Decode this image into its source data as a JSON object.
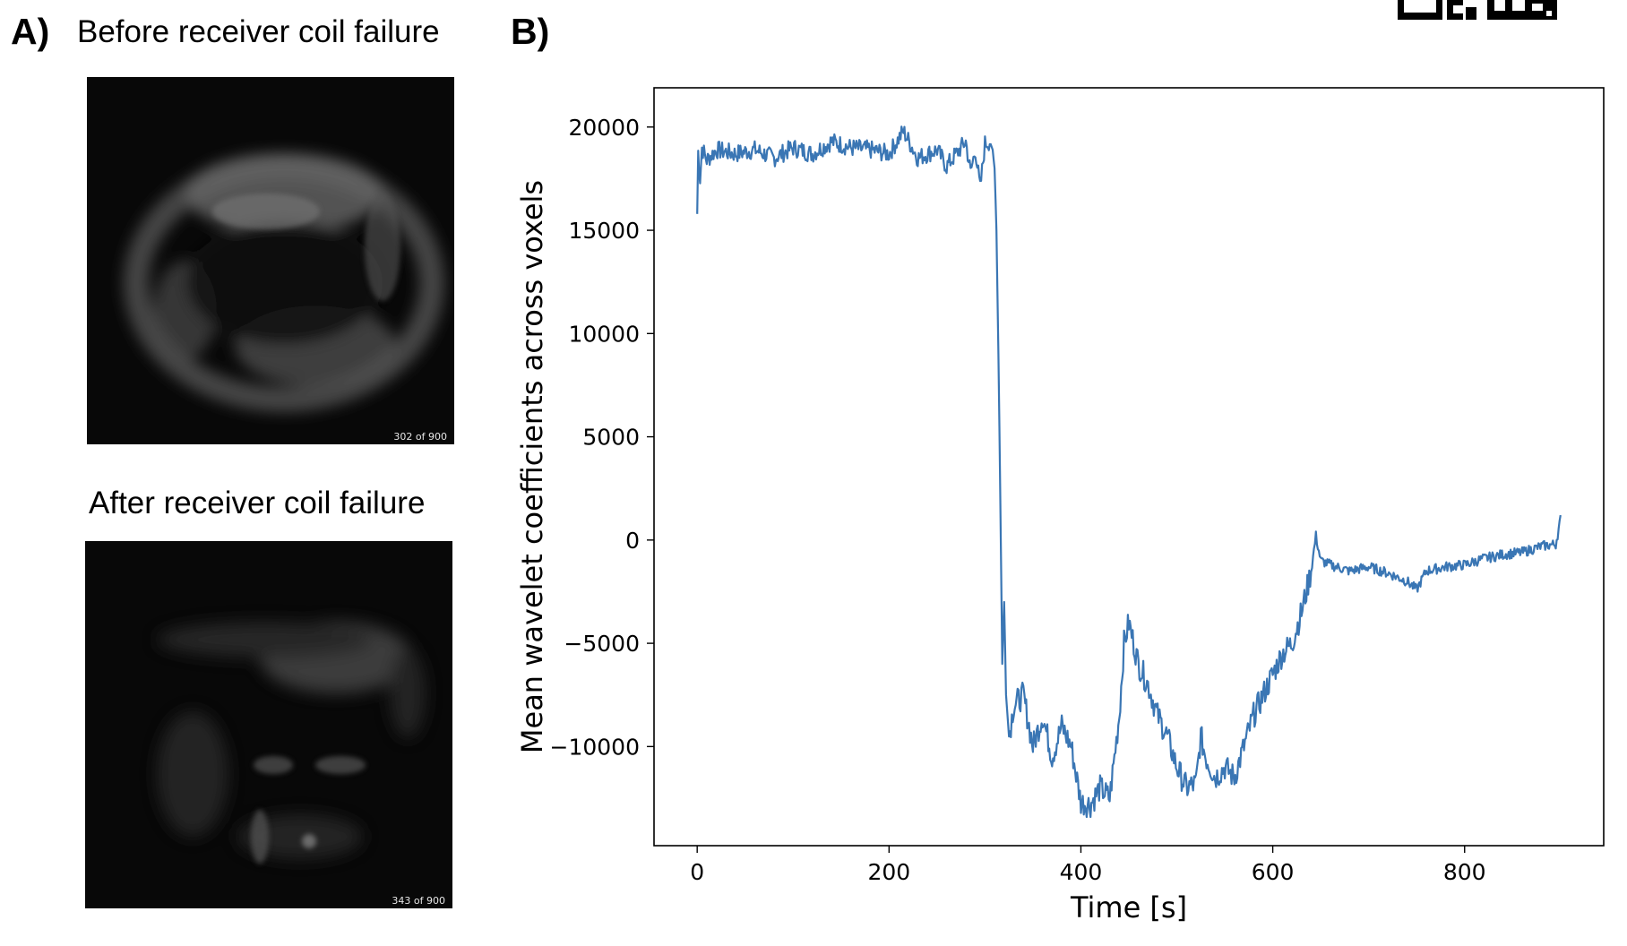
{
  "panel_a": {
    "label": "A)",
    "before_title": "Before receiver coil failure",
    "after_title": "After receiver coil failure",
    "before_frame": "302 of 900",
    "after_frame": "343 of 900"
  },
  "panel_b": {
    "label": "B)"
  },
  "colors": {
    "line": "#3a76b4",
    "axes": "#000000",
    "mri_bg": "#080808"
  },
  "chart_data": {
    "type": "line",
    "title": "",
    "xlabel": "Time [s]",
    "ylabel": "Mean wavelet coefficients across voxels",
    "xlim": [
      -45,
      945
    ],
    "ylim": [
      -14800,
      21900
    ],
    "xticks": [
      0,
      200,
      400,
      600,
      800
    ],
    "xtick_labels": [
      "0",
      "200",
      "400",
      "600",
      "800"
    ],
    "yticks": [
      20000,
      15000,
      10000,
      5000,
      0,
      -5000,
      -10000
    ],
    "ytick_labels": [
      "20000",
      "15000",
      "10000",
      "5000",
      "0",
      "−5000",
      "−10000"
    ],
    "series": [
      {
        "name": "Mean wavelet coefficients",
        "x": [
          0,
          1,
          3,
          5,
          10,
          20,
          40,
          60,
          80,
          100,
          120,
          140,
          160,
          180,
          200,
          215,
          230,
          250,
          260,
          270,
          280,
          285,
          290,
          295,
          300,
          305,
          308,
          310,
          312,
          314,
          316,
          318,
          320,
          322,
          325,
          330,
          340,
          350,
          360,
          370,
          380,
          390,
          400,
          410,
          420,
          430,
          440,
          445,
          450,
          460,
          470,
          480,
          490,
          500,
          510,
          520,
          525,
          530,
          540,
          550,
          560,
          570,
          580,
          590,
          600,
          610,
          620,
          630,
          640,
          645,
          650,
          660,
          680,
          700,
          720,
          740,
          750,
          760,
          780,
          800,
          820,
          840,
          860,
          880,
          895,
          900
        ],
        "values": [
          15800,
          18800,
          17500,
          19000,
          18400,
          18900,
          18700,
          18900,
          18500,
          19000,
          18700,
          19300,
          19000,
          18900,
          18700,
          19800,
          18500,
          18900,
          18100,
          18700,
          19300,
          17800,
          18900,
          17000,
          19200,
          19300,
          18900,
          18000,
          15000,
          9000,
          2000,
          -6000,
          -3000,
          -7500,
          -9500,
          -8000,
          -7500,
          -10000,
          -8500,
          -10500,
          -9000,
          -10000,
          -12700,
          -12800,
          -12000,
          -12500,
          -8500,
          -5000,
          -4000,
          -6000,
          -7000,
          -8500,
          -9500,
          -11000,
          -12000,
          -11800,
          -9500,
          -10500,
          -11500,
          -11000,
          -11500,
          -10000,
          -8500,
          -7500,
          -6500,
          -5500,
          -5000,
          -3500,
          -1500,
          200,
          -1000,
          -1200,
          -1500,
          -1300,
          -1600,
          -2000,
          -2400,
          -1500,
          -1300,
          -1200,
          -900,
          -700,
          -600,
          -300,
          -200,
          1000
        ]
      }
    ]
  }
}
